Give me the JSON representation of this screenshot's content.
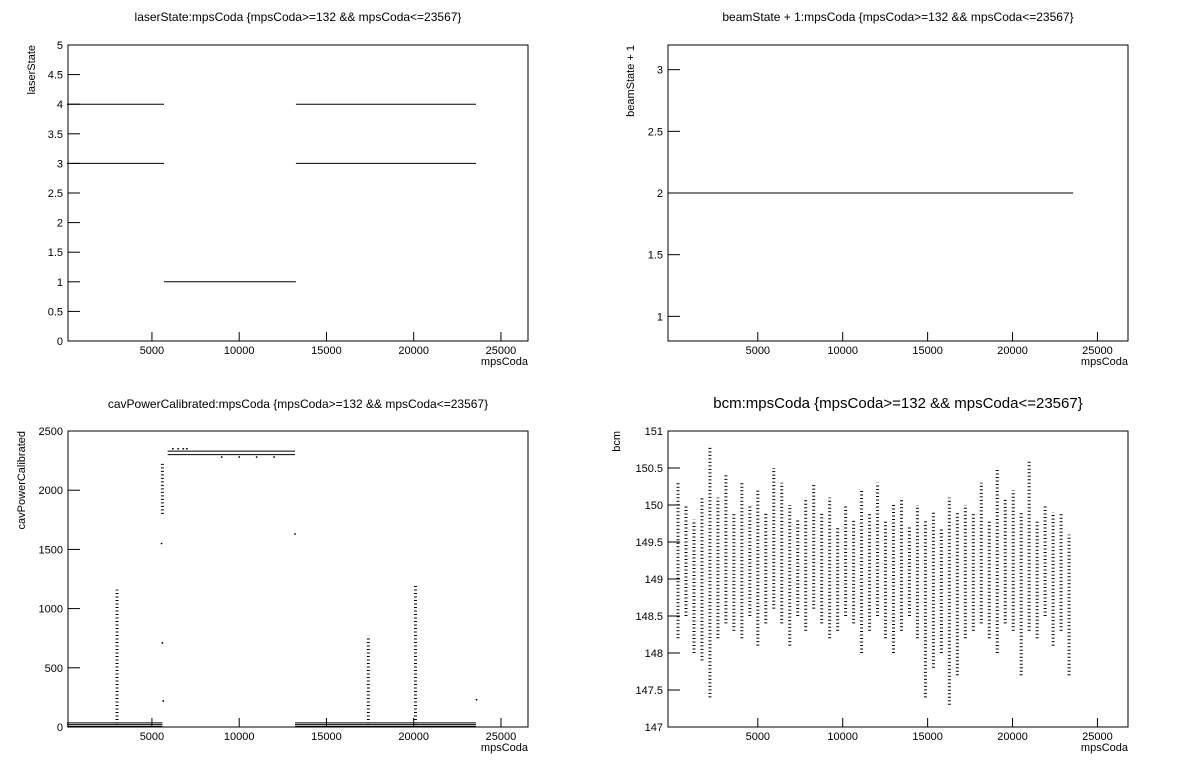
{
  "chart_data": [
    {
      "type": "scatter",
      "title": "laserState:mpsCoda {mpsCoda>=132 && mpsCoda<=23567}",
      "xlabel": "mpsCoda",
      "ylabel": "laserState",
      "xlim": [
        190,
        26550
      ],
      "ylim": [
        0,
        5
      ],
      "xticks": [
        5000,
        10000,
        15000,
        20000,
        25000
      ],
      "yticks": [
        0,
        0.5,
        1,
        1.5,
        2,
        2.5,
        3,
        3.5,
        4,
        4.5,
        5
      ],
      "series": [
        {
          "color": "#000000",
          "style": "line",
          "x": [
            132,
            5690,
            null,
            13250,
            23567
          ],
          "values": [
            4,
            4,
            null,
            4,
            4
          ]
        },
        {
          "color": "#000000",
          "style": "line",
          "x": [
            132,
            5690,
            null,
            13250,
            23567
          ],
          "values": [
            3,
            3,
            null,
            3,
            3
          ]
        },
        {
          "color": "#000000",
          "style": "line",
          "x": [
            5690,
            13250
          ],
          "values": [
            1,
            1
          ]
        }
      ]
    },
    {
      "type": "scatter",
      "title": "beamState + 1:mpsCoda {mpsCoda>=132 && mpsCoda<=23567}",
      "xlabel": "mpsCoda",
      "ylabel": "beamState + 1",
      "xlim": [
        -290,
        26800
      ],
      "ylim": [
        0.8,
        3.2
      ],
      "xticks": [
        5000,
        10000,
        15000,
        20000,
        25000
      ],
      "yticks": [
        1,
        1.5,
        2,
        2.5,
        3
      ],
      "series": [
        {
          "color": "#000000",
          "style": "line",
          "x": [
            132,
            23567
          ],
          "values": [
            2,
            2
          ]
        }
      ]
    },
    {
      "type": "scatter",
      "title": "cavPowerCalibrated:mpsCoda {mpsCoda>=132 && mpsCoda<=23567}",
      "xlabel": "mpsCoda",
      "ylabel": "cavPowerCalibrated",
      "xlim": [
        190,
        26550
      ],
      "ylim": [
        0,
        2500
      ],
      "xticks": [
        5000,
        10000,
        15000,
        20000,
        25000
      ],
      "yticks": [
        0,
        500,
        1000,
        1500,
        2000,
        2500
      ],
      "series": [
        {
          "color": "#000000",
          "style": "line",
          "x": [
            132,
            5600,
            null,
            13200,
            23567
          ],
          "values": [
            5,
            5,
            null,
            5,
            5
          ]
        },
        {
          "color": "#000000",
          "style": "line",
          "x": [
            132,
            5600,
            null,
            13200,
            23567
          ],
          "values": [
            20,
            20,
            null,
            20,
            20
          ]
        },
        {
          "color": "#000000",
          "style": "line",
          "x": [
            132,
            5600,
            null,
            13200,
            23567
          ],
          "values": [
            35,
            35,
            null,
            35,
            35
          ]
        },
        {
          "color": "#000000",
          "style": "line",
          "x": [
            5900,
            13200
          ],
          "values": [
            2330,
            2330
          ]
        },
        {
          "color": "#000000",
          "style": "line",
          "x": [
            5900,
            13200
          ],
          "values": [
            2300,
            2300
          ]
        },
        {
          "color": "#000000",
          "style": "dots",
          "x": [
            5550,
            5600,
            5650,
            13200,
            6200,
            6500,
            6800,
            7000,
            9000,
            10000,
            11000,
            12000,
            23600
          ],
          "values": [
            1550,
            710,
            220,
            1630,
            2350,
            2350,
            2350,
            2350,
            2280,
            2280,
            2280,
            2280,
            230
          ]
        },
        {
          "color": "#000000",
          "style": "range",
          "x": [
            3000,
            5600,
            17400,
            20100
          ],
          "low": [
            30,
            1800,
            30,
            30
          ],
          "high": [
            1160,
            2230,
            770,
            1210
          ]
        }
      ]
    },
    {
      "type": "scatter",
      "title": "bcm:mpsCoda {mpsCoda>=132 && mpsCoda<=23567}",
      "xlabel": "mpsCoda",
      "ylabel": "bcm",
      "xlim": [
        -290,
        26800
      ],
      "ylim": [
        147,
        151
      ],
      "xticks": [
        5000,
        10000,
        15000,
        20000,
        25000
      ],
      "yticks": [
        147,
        147.5,
        148,
        148.5,
        149,
        149.5,
        150,
        150.5,
        151
      ],
      "series": [
        {
          "color": "#000000",
          "style": "range",
          "x": [
            300,
            770,
            1240,
            1710,
            2180,
            2650,
            3120,
            3590,
            4060,
            4530,
            5000,
            5470,
            5940,
            6410,
            6880,
            7350,
            7820,
            8290,
            8760,
            9230,
            9700,
            10170,
            10640,
            11110,
            11580,
            12050,
            12520,
            12990,
            13460,
            13930,
            14400,
            14870,
            15340,
            15810,
            16280,
            16750,
            17220,
            17690,
            18160,
            18630,
            19100,
            19570,
            20040,
            20510,
            20980,
            21450,
            21920,
            22390,
            22860,
            23330
          ],
          "low": [
            148.2,
            148.5,
            148.0,
            147.9,
            147.4,
            148.2,
            148.4,
            148.3,
            148.2,
            148.5,
            148.1,
            148.4,
            148.6,
            148.4,
            148.1,
            148.5,
            148.3,
            148.6,
            148.4,
            148.2,
            148.3,
            148.5,
            148.4,
            148.0,
            148.3,
            148.5,
            148.2,
            148.0,
            148.3,
            148.5,
            148.2,
            147.4,
            147.8,
            148.0,
            147.3,
            147.7,
            148.2,
            148.3,
            148.4,
            148.2,
            148.0,
            148.4,
            148.3,
            147.7,
            148.3,
            148.2,
            148.5,
            148.1,
            148.3,
            147.7
          ],
          "high": [
            150.3,
            150.0,
            149.8,
            150.1,
            150.8,
            150.1,
            150.4,
            149.9,
            150.3,
            150.0,
            150.2,
            149.9,
            150.5,
            150.3,
            150.0,
            149.8,
            150.1,
            150.3,
            149.9,
            150.1,
            149.7,
            150.0,
            149.8,
            150.2,
            149.9,
            150.3,
            149.8,
            150.0,
            150.1,
            149.7,
            150.0,
            149.8,
            149.9,
            149.7,
            150.1,
            149.9,
            150.0,
            149.9,
            150.3,
            149.8,
            150.5,
            150.1,
            150.2,
            149.9,
            150.6,
            149.8,
            150.0,
            149.9,
            149.9,
            149.6
          ]
        }
      ]
    }
  ]
}
